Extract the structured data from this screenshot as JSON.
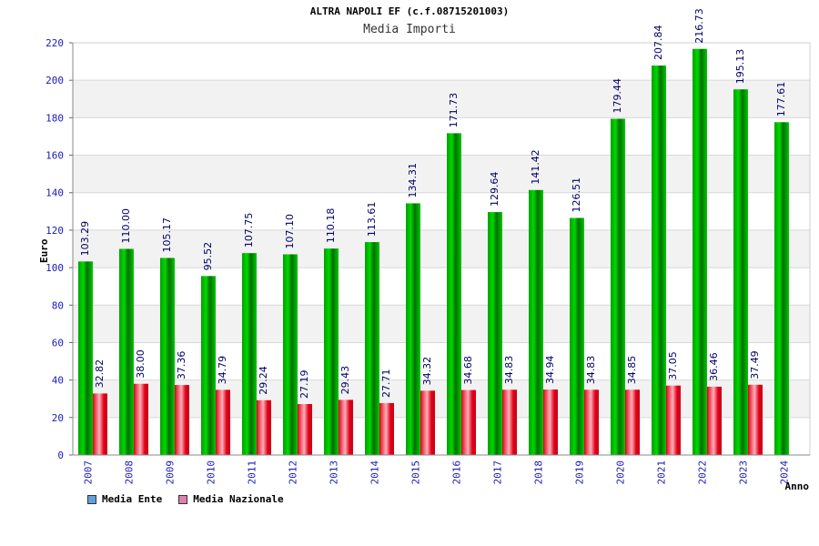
{
  "title": "ALTRA NAPOLI EF (c.f.08715201003)",
  "subtitle": "Media Importi",
  "chart_data": {
    "type": "bar",
    "title": "Media Importi",
    "xlabel": "Anno",
    "ylabel": "Euro",
    "ylim": [
      0,
      220
    ],
    "yticks": [
      0,
      20,
      40,
      60,
      80,
      100,
      120,
      140,
      160,
      180,
      200,
      220
    ],
    "grid": true,
    "legend_position": "bottom-left",
    "categories": [
      "2007",
      "2008",
      "2009",
      "2010",
      "2011",
      "2012",
      "2013",
      "2014",
      "2015",
      "2016",
      "2017",
      "2018",
      "2019",
      "2020",
      "2021",
      "2022",
      "2023",
      "2024"
    ],
    "series": [
      {
        "name": "Media Ente",
        "color": "#00b400",
        "values": [
          103.29,
          110.0,
          105.17,
          95.52,
          107.75,
          107.1,
          110.18,
          113.61,
          134.31,
          171.73,
          129.64,
          141.42,
          126.51,
          179.44,
          207.84,
          216.73,
          195.13,
          177.61
        ],
        "labels": [
          "103.29",
          "110.00",
          "105.17",
          "95.52",
          "107.75",
          "107.10",
          "110.18",
          "113.61",
          "134.31",
          "171.73",
          "129.64",
          "141.42",
          "126.51",
          "179.44",
          "207.84",
          "216.73",
          "195.13",
          "177.61"
        ]
      },
      {
        "name": "Media Nazionale",
        "color": "#e6001e",
        "values": [
          32.82,
          38.0,
          37.36,
          34.79,
          29.24,
          27.19,
          29.43,
          27.71,
          34.32,
          34.68,
          34.83,
          34.94,
          34.83,
          34.85,
          37.05,
          36.46,
          37.49,
          null
        ],
        "labels": [
          "32.82",
          "38.00",
          "37.36",
          "34.79",
          "29.24",
          "27.19",
          "29.43",
          "27.71",
          "34.32",
          "34.68",
          "34.83",
          "34.94",
          "34.83",
          "34.85",
          "37.05",
          "36.46",
          "37.49",
          ""
        ]
      }
    ]
  },
  "legend": [
    {
      "label": "Media Ente",
      "color": "#5fa0e0"
    },
    {
      "label": "Media Nazionale",
      "color": "#e07fb0"
    }
  ]
}
